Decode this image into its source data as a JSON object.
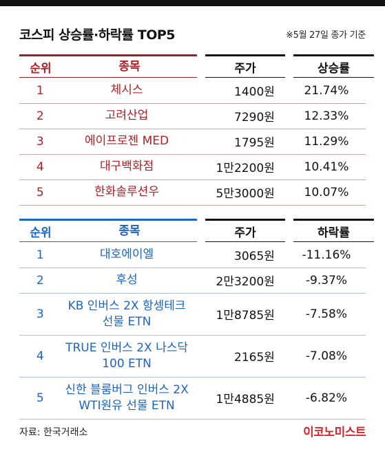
{
  "title": "코스피 상승률·하락률 TOP5",
  "note": "※5월 27일 종가 기준",
  "rise_table": {
    "headers": {
      "rank": "순위",
      "name": "종목",
      "price": "주가",
      "rate": "상승률"
    },
    "rows": [
      {
        "rank": "1",
        "name": "체시스",
        "price": "1400원",
        "rate": "21.74%"
      },
      {
        "rank": "2",
        "name": "고려산업",
        "price": "7290원",
        "rate": "12.33%"
      },
      {
        "rank": "3",
        "name": "에이프로젠 MED",
        "price": "1795원",
        "rate": "11.29%"
      },
      {
        "rank": "4",
        "name": "대구백화점",
        "price": "1만2200원",
        "rate": "10.41%"
      },
      {
        "rank": "5",
        "name": "한화솔루션우",
        "price": "5만3000원",
        "rate": "10.07%"
      }
    ]
  },
  "fall_table": {
    "headers": {
      "rank": "순위",
      "name": "종목",
      "price": "주가",
      "rate": "하락률"
    },
    "rows": [
      {
        "rank": "1",
        "name": "대호에이엘",
        "price": "3065원",
        "rate": "-11.16%"
      },
      {
        "rank": "2",
        "name": "후성",
        "price": "2만3200원",
        "rate": "-9.37%"
      },
      {
        "rank": "3",
        "name": "KB 인버스 2X 항셍테크 선물 ETN",
        "price": "1만8785원",
        "rate": "-7.58%"
      },
      {
        "rank": "4",
        "name": "TRUE 인버스 2X 나스닥 100 ETN",
        "price": "2165원",
        "rate": "-7.08%"
      },
      {
        "rank": "5",
        "name": "신한 블룸버그 인버스 2X WTI원유 선물 ETN",
        "price": "1만4885원",
        "rate": "-6.82%"
      }
    ]
  },
  "source": "자료: 한국거래소",
  "logo": "이코노미스트",
  "colors": {
    "rise": "#b21e23",
    "fall": "#1b64c9",
    "logo": "#d8232a"
  }
}
